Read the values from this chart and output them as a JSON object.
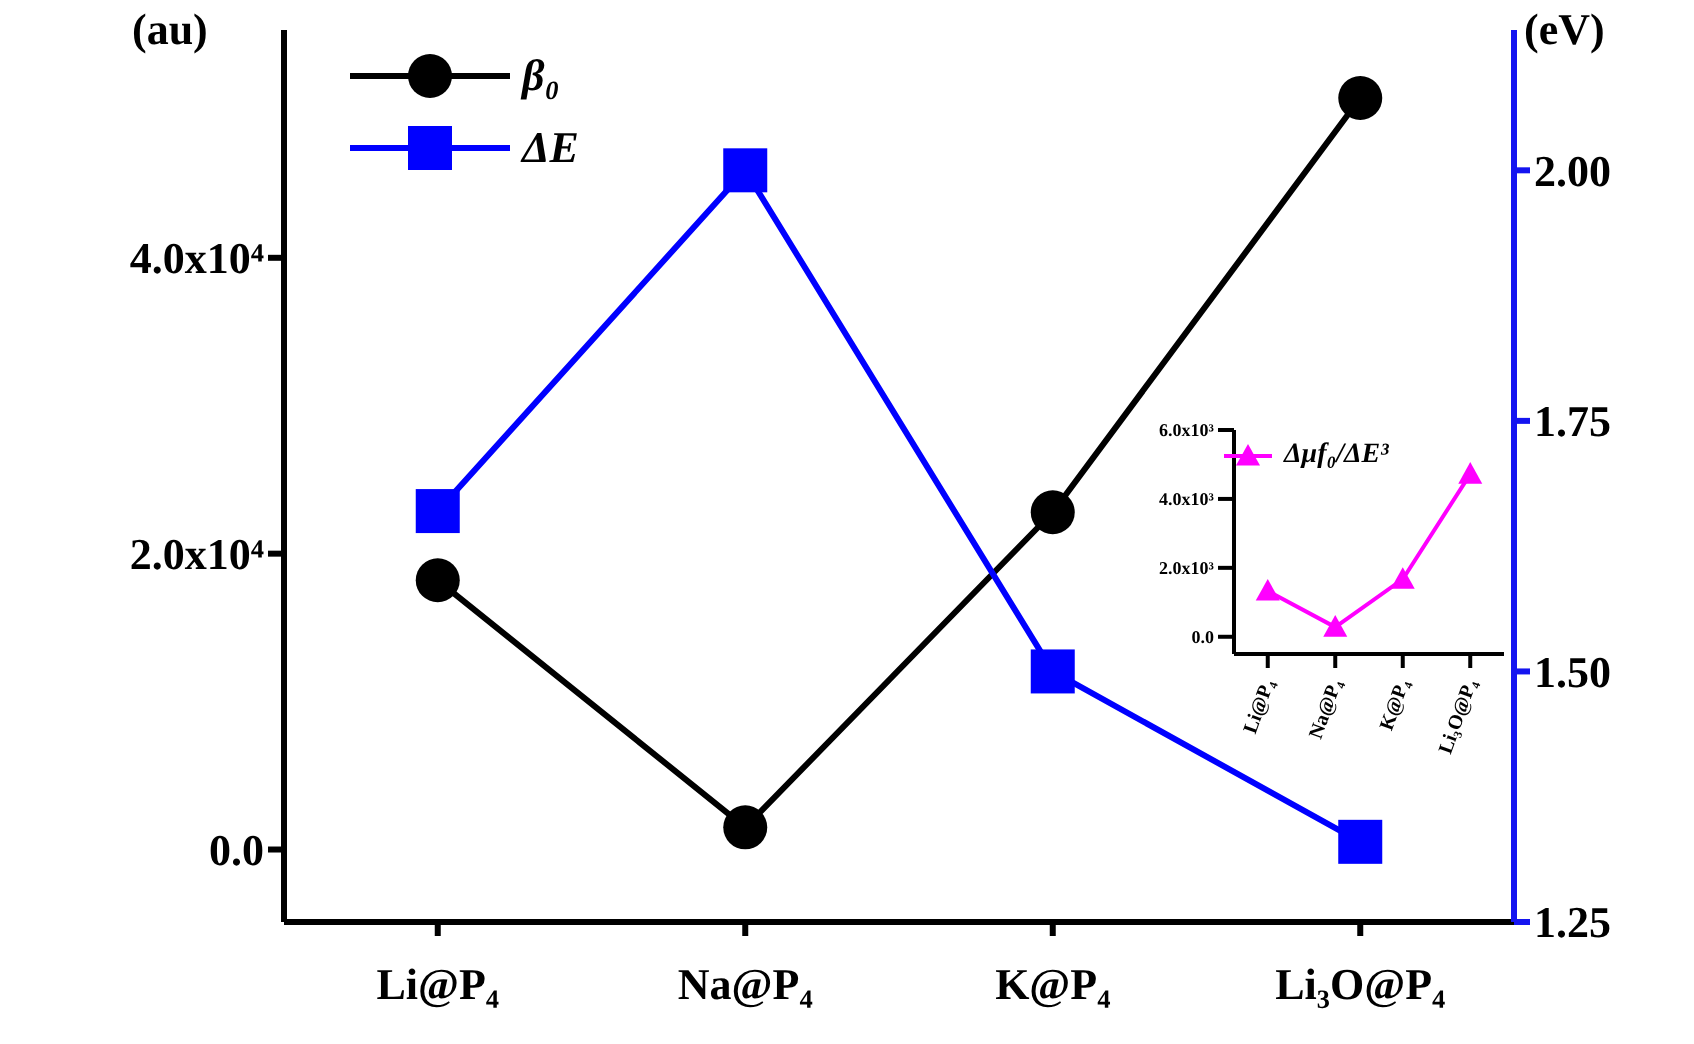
{
  "chart_data": [
    {
      "type": "line",
      "ylabel": "(au)",
      "y2label": "(eV)",
      "categories": [
        "Li@P₄",
        "Na@P₄",
        "K@P₄",
        "Li₃O@P₄"
      ],
      "series": [
        {
          "name": "β₀",
          "color": "#000000",
          "values": [
            18200,
            1500,
            22800,
            50800
          ],
          "marker": "circle"
        },
        {
          "name": "ΔE",
          "color": "#0000ff",
          "values": [
            1.66,
            2.0,
            1.5,
            1.33
          ],
          "axis": "y2",
          "marker": "square"
        }
      ],
      "ylim": [
        -4900,
        55400
      ],
      "yticks": [
        {
          "value": 0,
          "label": "0.0"
        },
        {
          "value": 20000,
          "label": "2.0x10⁴"
        },
        {
          "value": 40000,
          "label": "4.0x10⁴"
        }
      ],
      "y2lim": [
        1.25,
        2.14
      ],
      "y2ticks": [
        1.25,
        {
          "value": 1.5,
          "label": "1.50"
        },
        1.75,
        {
          "value": 2,
          "label": "2.00"
        }
      ],
      "legend": "top left",
      "grid": false
    },
    {
      "type": "line",
      "categories": [
        "Li@P₄",
        "Na@P₄",
        "K@P₄",
        "Li₃O@P₄"
      ],
      "series": [
        {
          "name": "Δμf₀/ΔE³",
          "color": "#ff00ff",
          "values": [
            1330,
            280,
            1670,
            4720
          ],
          "marker": "triangle"
        }
      ],
      "ylim": [
        -500,
        6000
      ],
      "yticks": [
        {
          "value": 0,
          "label": "0.0"
        },
        {
          "value": 2000,
          "label": "2.0x10³"
        },
        {
          "value": 4000,
          "label": "4.0x10³"
        },
        {
          "value": 6000,
          "label": "6.0x10³"
        }
      ],
      "legend": "top",
      "grid": false
    }
  ]
}
